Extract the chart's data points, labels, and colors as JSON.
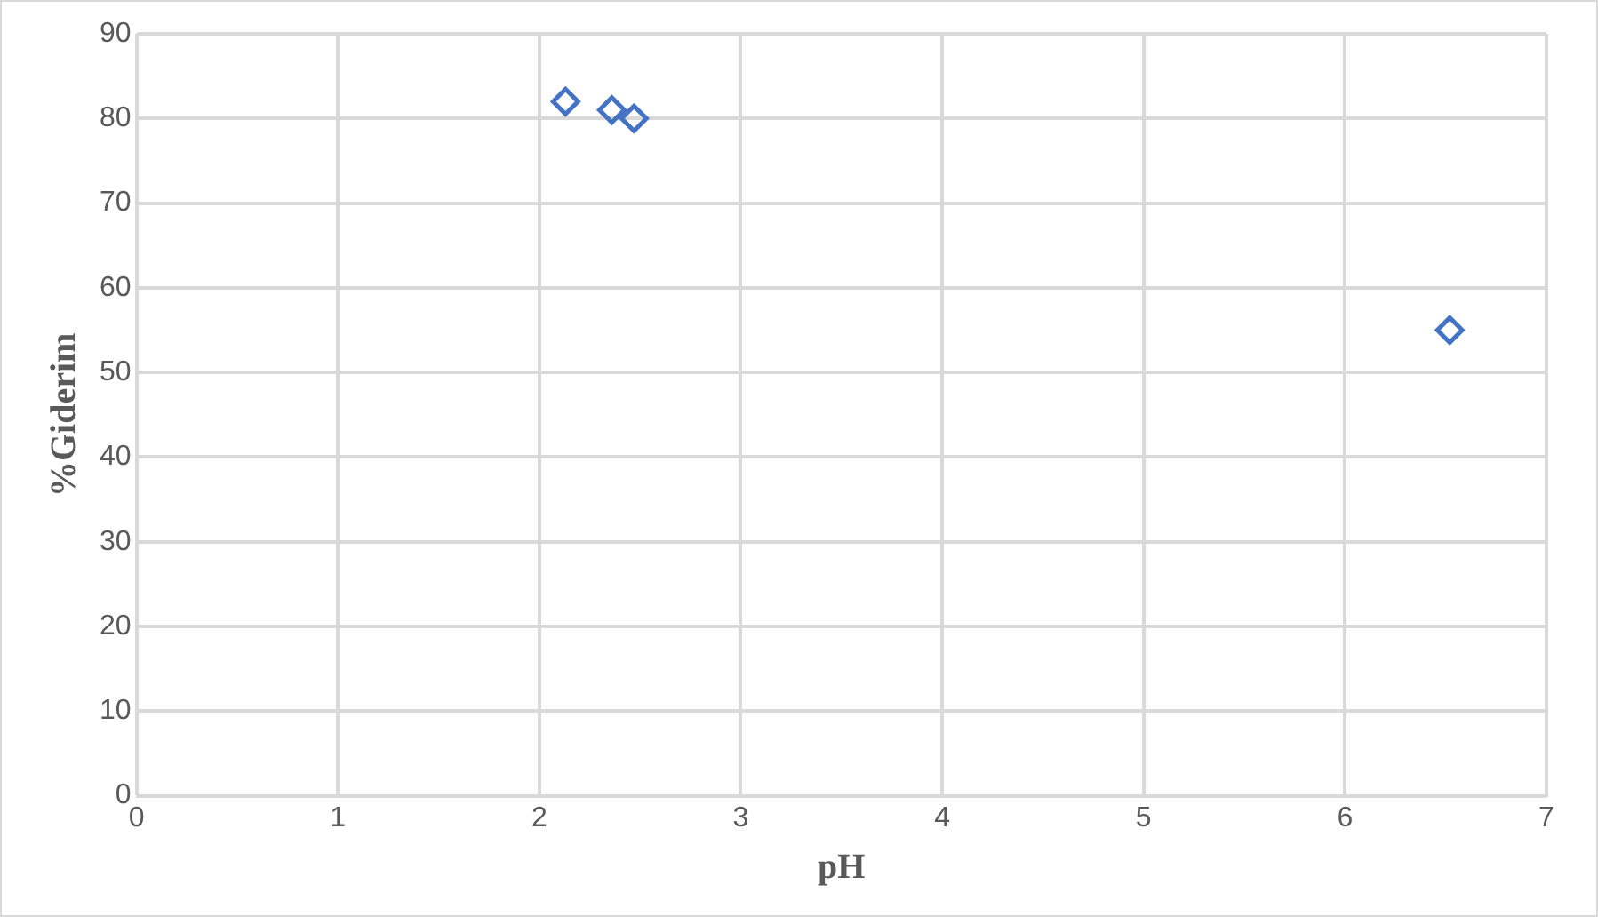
{
  "chart_data": {
    "type": "scatter",
    "xlabel": "pH",
    "ylabel": "%Giderim",
    "x": [
      2.13,
      2.36,
      2.47,
      6.52
    ],
    "series": [
      {
        "color": "#4472c4",
        "values": [
          82,
          81,
          80,
          55
        ]
      }
    ],
    "xlim": [
      0,
      7
    ],
    "xticks": [
      0,
      1,
      2,
      3,
      4,
      5,
      6,
      7
    ],
    "ylim": [
      0,
      90
    ],
    "yticks": [
      0,
      10,
      20,
      30,
      40,
      50,
      60,
      70,
      80,
      90
    ],
    "grid": true,
    "legend": false,
    "marker": "diamond"
  }
}
